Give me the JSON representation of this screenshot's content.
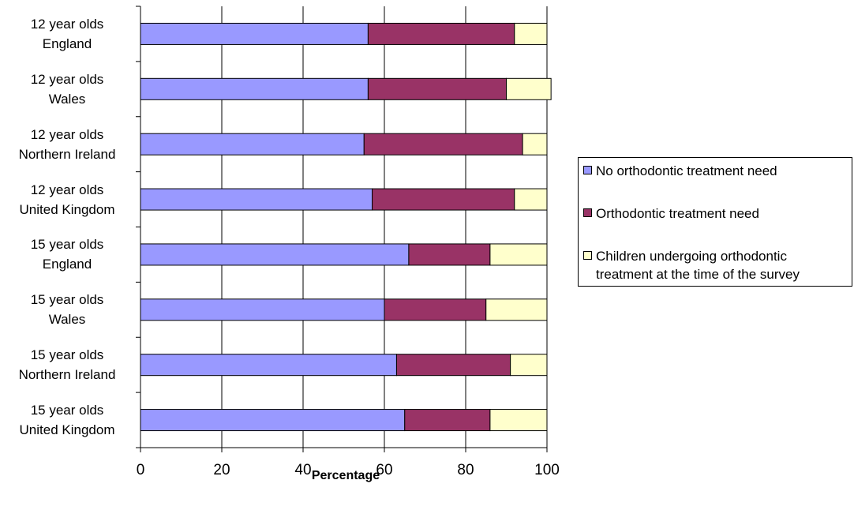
{
  "chart_data": {
    "type": "bar",
    "orientation": "horizontal",
    "stacked": true,
    "categories": [
      [
        "12 year olds",
        "England"
      ],
      [
        "12 year olds",
        "Wales"
      ],
      [
        "12 year olds",
        "Northern Ireland"
      ],
      [
        "12 year olds",
        "United Kingdom"
      ],
      [
        "15 year olds",
        "England"
      ],
      [
        "15 year olds",
        "Wales"
      ],
      [
        "15 year olds",
        "Northern Ireland"
      ],
      [
        "15 year olds",
        "United Kingdom"
      ]
    ],
    "series": [
      {
        "name": "No orthodontic treatment need",
        "color": "#9999ff",
        "values": [
          56,
          56,
          55,
          57,
          66,
          60,
          63,
          65
        ]
      },
      {
        "name": "Orthodontic treatment need",
        "color": "#993366",
        "values": [
          36,
          34,
          39,
          35,
          20,
          25,
          28,
          21
        ]
      },
      {
        "name": "Children undergoing orthodontic treatment at the time of the survey",
        "color": "#ffffcc",
        "values": [
          8,
          11,
          6,
          8,
          14,
          15,
          9,
          14
        ]
      }
    ],
    "xlabel": "Percentage",
    "xlim": [
      0,
      100
    ],
    "xticks": [
      "0",
      "20",
      "40",
      "60",
      "80",
      "100"
    ],
    "grid": "vertical",
    "legend": "right"
  },
  "legend": {
    "items": [
      {
        "lines": [
          "No orthodontic treatment need"
        ]
      },
      {
        "lines": [
          "Orthodontic treatment need"
        ]
      },
      {
        "lines": [
          "Children undergoing orthodontic",
          "treatment at the time of the survey"
        ]
      }
    ]
  }
}
